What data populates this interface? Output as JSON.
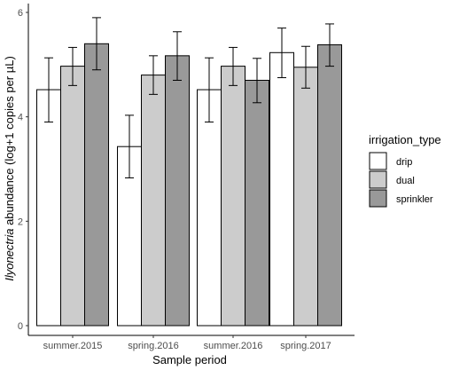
{
  "chart_data": {
    "type": "bar",
    "xlabel": "Sample period",
    "ylabel_italic": "Ilyonectria",
    "ylabel_rest": " abundance (log+1 copies per µL)",
    "legend_title": "irrigation_type",
    "legend_position": "right",
    "grid": false,
    "ylim": [
      0,
      6.1
    ],
    "yticks": [
      "0",
      "2",
      "4",
      "6"
    ],
    "categories": [
      "summer.2015",
      "spring.2016",
      "summer.2016",
      "spring.2017"
    ],
    "series": [
      {
        "name": "drip",
        "color": "#ffffff",
        "values": [
          4.52,
          3.43,
          4.52,
          5.23
        ],
        "err_low": [
          3.9,
          2.83,
          3.9,
          4.75
        ],
        "err_high": [
          5.13,
          4.03,
          5.13,
          5.7
        ]
      },
      {
        "name": "dual",
        "color": "#cccccc",
        "values": [
          4.97,
          4.8,
          4.97,
          4.95
        ],
        "err_low": [
          4.6,
          4.43,
          4.6,
          4.55
        ],
        "err_high": [
          5.33,
          5.17,
          5.33,
          5.35
        ]
      },
      {
        "name": "sprinkler",
        "color": "#999999",
        "values": [
          5.4,
          5.17,
          4.7,
          5.38
        ],
        "err_low": [
          4.9,
          4.7,
          4.27,
          4.97
        ],
        "err_high": [
          5.9,
          5.63,
          5.12,
          5.78
        ]
      }
    ]
  }
}
